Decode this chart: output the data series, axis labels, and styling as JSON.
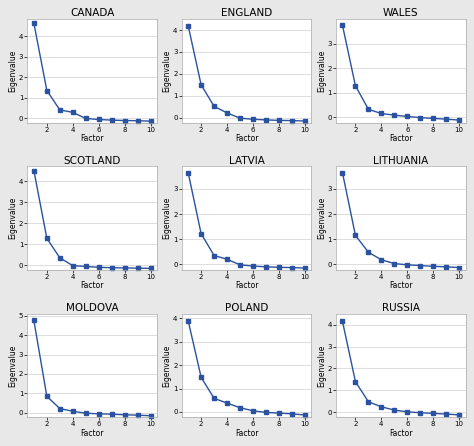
{
  "countries": [
    "CANADA",
    "ENGLAND",
    "WALES",
    "SCOTLAND",
    "LATVIA",
    "LITHUANIA",
    "MOLDOVA",
    "POLAND",
    "RUSSIA"
  ],
  "factors": [
    1,
    2,
    3,
    4,
    5,
    6,
    7,
    8,
    9,
    10
  ],
  "eigenvalues": {
    "CANADA": [
      4.65,
      1.35,
      0.4,
      0.28,
      -0.02,
      -0.07,
      -0.1,
      -0.12,
      -0.13,
      -0.15
    ],
    "ENGLAND": [
      4.2,
      1.5,
      0.52,
      0.22,
      -0.02,
      -0.07,
      -0.1,
      -0.12,
      -0.13,
      -0.15
    ],
    "WALES": [
      3.75,
      1.28,
      0.32,
      0.15,
      0.08,
      0.03,
      -0.02,
      -0.05,
      -0.08,
      -0.12
    ],
    "SCOTLAND": [
      4.5,
      1.28,
      0.35,
      -0.02,
      -0.06,
      -0.1,
      -0.12,
      -0.13,
      -0.14,
      -0.15
    ],
    "LATVIA": [
      3.65,
      1.22,
      0.35,
      0.2,
      -0.02,
      -0.07,
      -0.1,
      -0.12,
      -0.13,
      -0.15
    ],
    "LITHUANIA": [
      3.65,
      1.15,
      0.48,
      0.18,
      0.03,
      -0.02,
      -0.05,
      -0.08,
      -0.1,
      -0.13
    ],
    "MOLDOVA": [
      4.75,
      0.85,
      0.22,
      0.08,
      -0.02,
      -0.05,
      -0.07,
      -0.1,
      -0.12,
      -0.15
    ],
    "POLAND": [
      3.9,
      1.48,
      0.58,
      0.38,
      0.18,
      0.05,
      -0.02,
      -0.05,
      -0.08,
      -0.13
    ],
    "RUSSIA": [
      4.15,
      1.4,
      0.48,
      0.25,
      0.1,
      0.02,
      -0.02,
      -0.05,
      -0.08,
      -0.12
    ]
  },
  "yticks": {
    "CANADA": [
      0,
      1,
      2,
      3,
      4
    ],
    "ENGLAND": [
      0,
      1,
      2,
      3,
      4
    ],
    "WALES": [
      0,
      1,
      2,
      3
    ],
    "SCOTLAND": [
      0,
      1,
      2,
      3,
      4
    ],
    "LATVIA": [
      0,
      1,
      2,
      3
    ],
    "LITHUANIA": [
      0,
      1,
      2,
      3
    ],
    "MOLDOVA": [
      0,
      1,
      2,
      3,
      4,
      5
    ],
    "POLAND": [
      0,
      1,
      2,
      3,
      4
    ],
    "RUSSIA": [
      0,
      1,
      2,
      3,
      4
    ]
  },
  "ylims": {
    "CANADA": [
      -0.22,
      4.85
    ],
    "ENGLAND": [
      -0.22,
      4.5
    ],
    "WALES": [
      -0.22,
      4.0
    ],
    "SCOTLAND": [
      -0.22,
      4.7
    ],
    "LATVIA": [
      -0.22,
      3.9
    ],
    "LITHUANIA": [
      -0.22,
      3.9
    ],
    "MOLDOVA": [
      -0.22,
      5.1
    ],
    "POLAND": [
      -0.22,
      4.2
    ],
    "RUSSIA": [
      -0.22,
      4.5
    ]
  },
  "line_color": "#2a52a0",
  "marker": "s",
  "marker_size": 2.5,
  "line_width": 1.0,
  "xlabel": "Factor",
  "ylabel": "Eigenvalue",
  "title_fontsize": 7.5,
  "axis_label_fontsize": 5.5,
  "tick_fontsize": 5.0,
  "figure_bg": "#e8e8e8",
  "plot_bg": "#ffffff",
  "grid_color": "#d0d0d0",
  "spine_color": "#aaaaaa"
}
